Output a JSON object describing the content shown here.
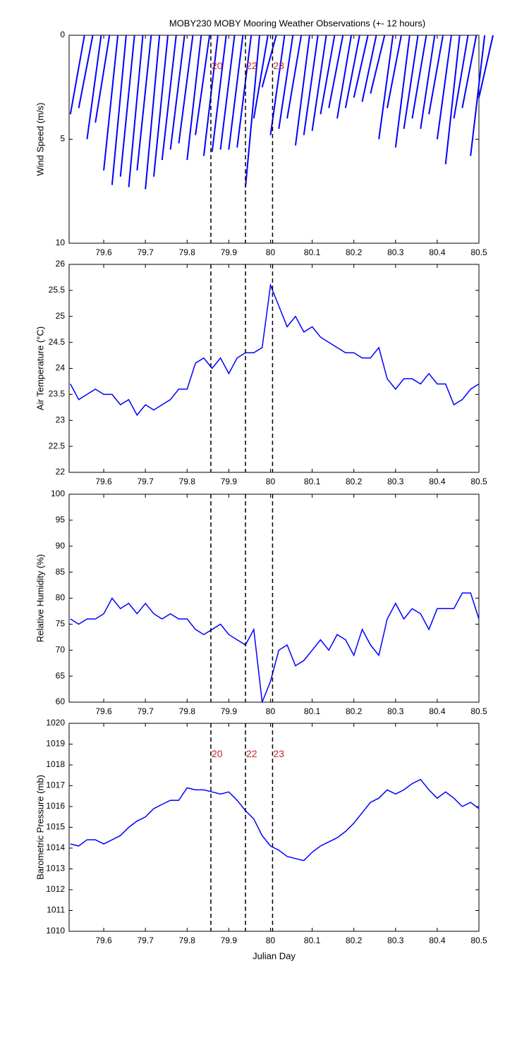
{
  "chart_data": [
    {
      "type": "stick",
      "title": "MOBY230 MOBY Mooring Weather Observations (+- 12 hours)",
      "ylabel": "Wind Speed (m/s)",
      "color": "#0000ff",
      "x": [
        79.52,
        79.54,
        79.56,
        79.58,
        79.6,
        79.62,
        79.64,
        79.66,
        79.68,
        79.7,
        79.72,
        79.74,
        79.76,
        79.78,
        79.8,
        79.82,
        79.84,
        79.86,
        79.88,
        79.9,
        79.92,
        79.94,
        79.96,
        79.98,
        80.0,
        80.02,
        80.04,
        80.06,
        80.08,
        80.1,
        80.12,
        80.14,
        80.16,
        80.18,
        80.2,
        80.22,
        80.24,
        80.26,
        80.28,
        80.3,
        80.32,
        80.34,
        80.36,
        80.38,
        80.4,
        80.42,
        80.44,
        80.46,
        80.48,
        80.5
      ],
      "values": [
        3.8,
        3.5,
        5.0,
        4.2,
        6.5,
        7.2,
        6.8,
        7.3,
        6.5,
        7.4,
        6.8,
        6.0,
        5.5,
        5.2,
        6.0,
        4.8,
        5.8,
        5.6,
        5.5,
        5.5,
        5.4,
        7.3,
        4.0,
        2.5,
        4.8,
        4.5,
        4.0,
        5.3,
        4.8,
        4.6,
        3.8,
        3.5,
        4.0,
        3.5,
        3.0,
        3.2,
        2.8,
        5.0,
        3.5,
        5.4,
        4.5,
        4.0,
        4.5,
        3.8,
        5.0,
        6.2,
        4.0,
        3.5,
        5.8,
        3.0
      ],
      "xlim": [
        79.517,
        80.5
      ],
      "xticks": [
        79.6,
        79.7,
        79.8,
        79.9,
        80,
        80.1,
        80.2,
        80.3,
        80.4,
        80.5
      ],
      "ylim": [
        0,
        10
      ],
      "y_reversed": true,
      "yticks": [
        0,
        5,
        10
      ],
      "vlines": [
        79.857,
        79.94,
        80.005
      ],
      "vline_labels": [
        "20",
        "22",
        "23"
      ],
      "vline_label_y": 1.5
    },
    {
      "type": "line",
      "ylabel": "Air Temperature (°C)",
      "color": "#0000ff",
      "x": [
        79.52,
        79.54,
        79.56,
        79.58,
        79.6,
        79.62,
        79.64,
        79.66,
        79.68,
        79.7,
        79.72,
        79.74,
        79.76,
        79.78,
        79.8,
        79.82,
        79.84,
        79.86,
        79.88,
        79.9,
        79.92,
        79.94,
        79.96,
        79.98,
        80.0,
        80.02,
        80.04,
        80.06,
        80.08,
        80.1,
        80.12,
        80.14,
        80.16,
        80.18,
        80.2,
        80.22,
        80.24,
        80.26,
        80.28,
        80.3,
        80.32,
        80.34,
        80.36,
        80.38,
        80.4,
        80.42,
        80.44,
        80.46,
        80.48,
        80.5
      ],
      "values": [
        23.7,
        23.4,
        23.5,
        23.6,
        23.5,
        23.5,
        23.3,
        23.4,
        23.1,
        23.3,
        23.2,
        23.3,
        23.4,
        23.6,
        23.6,
        24.1,
        24.2,
        24.0,
        24.2,
        23.9,
        24.2,
        24.3,
        24.3,
        24.4,
        25.6,
        25.2,
        24.8,
        25.0,
        24.7,
        24.8,
        24.6,
        24.5,
        24.4,
        24.3,
        24.3,
        24.2,
        24.2,
        24.4,
        23.8,
        23.6,
        23.8,
        23.8,
        23.7,
        23.9,
        23.7,
        23.7,
        23.3,
        23.4,
        23.6,
        23.7
      ],
      "xlim": [
        79.517,
        80.5
      ],
      "xticks": [
        79.6,
        79.7,
        79.8,
        79.9,
        80,
        80.1,
        80.2,
        80.3,
        80.4,
        80.5
      ],
      "ylim": [
        22,
        26
      ],
      "yticks": [
        22,
        22.5,
        23,
        23.5,
        24,
        24.5,
        25,
        25.5,
        26
      ],
      "vlines": [
        79.857,
        79.94,
        80.005
      ]
    },
    {
      "type": "line",
      "ylabel": "Relative Humidity (%)",
      "color": "#0000ff",
      "x": [
        79.52,
        79.54,
        79.56,
        79.58,
        79.6,
        79.62,
        79.64,
        79.66,
        79.68,
        79.7,
        79.72,
        79.74,
        79.76,
        79.78,
        79.8,
        79.82,
        79.84,
        79.86,
        79.88,
        79.9,
        79.92,
        79.94,
        79.96,
        79.98,
        80.0,
        80.02,
        80.04,
        80.06,
        80.08,
        80.1,
        80.12,
        80.14,
        80.16,
        80.18,
        80.2,
        80.22,
        80.24,
        80.26,
        80.28,
        80.3,
        80.32,
        80.34,
        80.36,
        80.38,
        80.4,
        80.42,
        80.44,
        80.46,
        80.48,
        80.5
      ],
      "values": [
        76,
        75,
        76,
        76,
        77,
        80,
        78,
        79,
        77,
        79,
        77,
        76,
        77,
        76,
        76,
        74,
        73,
        74,
        75,
        73,
        72,
        71,
        74,
        60,
        64,
        70,
        71,
        67,
        68,
        70,
        72,
        70,
        73,
        72,
        69,
        74,
        71,
        69,
        76,
        79,
        76,
        78,
        77,
        74,
        78,
        78,
        78,
        81,
        81,
        76
      ],
      "xlim": [
        79.517,
        80.5
      ],
      "xticks": [
        79.6,
        79.7,
        79.8,
        79.9,
        80,
        80.1,
        80.2,
        80.3,
        80.4,
        80.5
      ],
      "ylim": [
        60,
        100
      ],
      "yticks": [
        60,
        65,
        70,
        75,
        80,
        85,
        90,
        95,
        100
      ],
      "vlines": [
        79.857,
        79.94,
        80.005
      ]
    },
    {
      "type": "line",
      "ylabel": "Barometric Pressure (mb)",
      "xlabel": "Julian Day",
      "color": "#0000ff",
      "x": [
        79.52,
        79.54,
        79.56,
        79.58,
        79.6,
        79.62,
        79.64,
        79.66,
        79.68,
        79.7,
        79.72,
        79.74,
        79.76,
        79.78,
        79.8,
        79.82,
        79.84,
        79.86,
        79.88,
        79.9,
        79.92,
        79.94,
        79.96,
        79.98,
        80.0,
        80.02,
        80.04,
        80.06,
        80.08,
        80.1,
        80.12,
        80.14,
        80.16,
        80.18,
        80.2,
        80.22,
        80.24,
        80.26,
        80.28,
        80.3,
        80.32,
        80.34,
        80.36,
        80.38,
        80.4,
        80.42,
        80.44,
        80.46,
        80.48,
        80.5
      ],
      "values": [
        1014.2,
        1014.1,
        1014.4,
        1014.4,
        1014.2,
        1014.4,
        1014.6,
        1015.0,
        1015.3,
        1015.5,
        1015.9,
        1016.1,
        1016.3,
        1016.3,
        1016.9,
        1016.8,
        1016.8,
        1016.7,
        1016.6,
        1016.7,
        1016.3,
        1015.8,
        1015.4,
        1014.6,
        1014.1,
        1013.9,
        1013.6,
        1013.5,
        1013.4,
        1013.8,
        1014.1,
        1014.3,
        1014.5,
        1014.8,
        1015.2,
        1015.7,
        1016.2,
        1016.4,
        1016.8,
        1016.6,
        1016.8,
        1017.1,
        1017.3,
        1016.8,
        1016.4,
        1016.7,
        1016.4,
        1016.0,
        1016.2,
        1015.9
      ],
      "xlim": [
        79.517,
        80.5
      ],
      "xticks": [
        79.6,
        79.7,
        79.8,
        79.9,
        80,
        80.1,
        80.2,
        80.3,
        80.4,
        80.5
      ],
      "ylim": [
        1010,
        1020
      ],
      "yticks": [
        1010,
        1011,
        1012,
        1013,
        1014,
        1015,
        1016,
        1017,
        1018,
        1019,
        1020
      ],
      "vlines": [
        79.857,
        79.94,
        80.005
      ],
      "vline_labels": [
        "20",
        "22",
        "23"
      ],
      "vline_label_y": 1018.5
    }
  ]
}
